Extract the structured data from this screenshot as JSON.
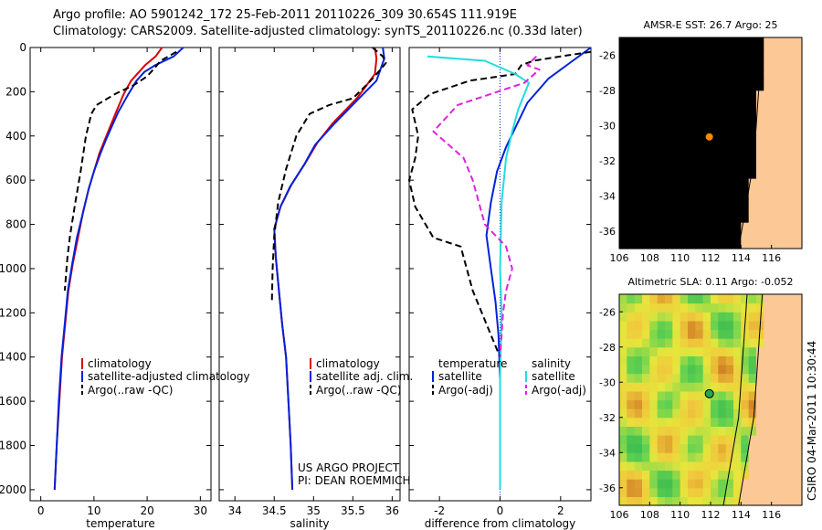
{
  "header": {
    "line1": "Argo profile: AO 5901242_172 25-Feb-2011 20110226_309 30.654S 111.919E",
    "line2": "Climatology: CARS2009. Satellite-adjusted climatology: synTS_20110226.nc (0.33d later)"
  },
  "colors": {
    "red": "#dd0000",
    "blue": "#0022dd",
    "black": "#000000",
    "cyan": "#22dddd",
    "magenta": "#dd22dd"
  },
  "chart_data": [
    {
      "type": "line",
      "xlabel": "temperature",
      "xlim": [
        -2,
        32
      ],
      "ylim": [
        2050,
        0
      ],
      "xticks": [
        0,
        10,
        20,
        30
      ],
      "yticks": [
        0,
        200,
        400,
        600,
        800,
        1000,
        1200,
        1400,
        1600,
        1800,
        2000
      ],
      "legend": {
        "position": "lower-right",
        "entries": [
          "climatology",
          "satellite-adjusted climatology",
          "Argo(..raw -QC)"
        ]
      },
      "series": [
        {
          "name": "climatology",
          "color": "red",
          "dash": false,
          "points": [
            [
              22.8,
              0
            ],
            [
              21.6,
              40
            ],
            [
              19.6,
              80
            ],
            [
              18.5,
              110
            ],
            [
              17.0,
              150
            ],
            [
              15.6,
              210
            ],
            [
              14.2,
              290
            ],
            [
              13.0,
              360
            ],
            [
              12.0,
              420
            ],
            [
              11.0,
              480
            ],
            [
              10.0,
              560
            ],
            [
              9.0,
              640
            ],
            [
              8.0,
              740
            ],
            [
              7.0,
              860
            ],
            [
              6.0,
              980
            ],
            [
              5.2,
              1100
            ],
            [
              4.6,
              1250
            ],
            [
              4.0,
              1400
            ],
            [
              3.5,
              1600
            ],
            [
              3.0,
              1800
            ],
            [
              2.6,
              2000
            ]
          ]
        },
        {
          "name": "satellite-adjusted climatology",
          "color": "blue",
          "dash": false,
          "points": [
            [
              26.8,
              0
            ],
            [
              25.0,
              40
            ],
            [
              21.5,
              80
            ],
            [
              19.5,
              110
            ],
            [
              18.0,
              150
            ],
            [
              16.5,
              210
            ],
            [
              14.6,
              290
            ],
            [
              13.3,
              360
            ],
            [
              12.2,
              420
            ],
            [
              11.2,
              480
            ],
            [
              10.0,
              560
            ],
            [
              9.0,
              640
            ],
            [
              7.8,
              760
            ],
            [
              6.8,
              860
            ],
            [
              5.9,
              980
            ],
            [
              5.1,
              1100
            ],
            [
              4.5,
              1250
            ],
            [
              3.9,
              1400
            ],
            [
              3.4,
              1600
            ],
            [
              3.0,
              1800
            ],
            [
              2.6,
              2000
            ]
          ]
        },
        {
          "name": "Argo(..raw -QC)",
          "color": "black",
          "dash": true,
          "points": [
            [
              25.5,
              20
            ],
            [
              24.0,
              40
            ],
            [
              22.5,
              60
            ],
            [
              21.5,
              90
            ],
            [
              20.0,
              130
            ],
            [
              17.5,
              170
            ],
            [
              14.0,
              210
            ],
            [
              10.5,
              260
            ],
            [
              9.5,
              300
            ],
            [
              8.5,
              400
            ],
            [
              7.5,
              560
            ],
            [
              6.5,
              700
            ],
            [
              5.5,
              850
            ],
            [
              5.0,
              950
            ],
            [
              4.5,
              1100
            ]
          ]
        }
      ]
    },
    {
      "type": "line",
      "xlabel": "salinity",
      "xlim": [
        33.8,
        36.1
      ],
      "ylim": [
        2050,
        0
      ],
      "xticks": [
        34,
        34.5,
        35,
        35.5,
        36
      ],
      "legend": {
        "position": "lower-right",
        "entries": [
          "climatology",
          "satellite adj. clim.",
          "Argo(..raw -QC)"
        ]
      },
      "annotation": [
        "US ARGO PROJECT",
        "PI: DEAN ROEMMICH"
      ],
      "series": [
        {
          "name": "climatology",
          "color": "red",
          "dash": false,
          "points": [
            [
              35.78,
              0
            ],
            [
              35.8,
              50
            ],
            [
              35.78,
              120
            ],
            [
              35.55,
              230
            ],
            [
              35.25,
              340
            ],
            [
              35.05,
              430
            ],
            [
              34.9,
              520
            ],
            [
              34.72,
              620
            ],
            [
              34.58,
              720
            ],
            [
              34.5,
              820
            ],
            [
              34.52,
              950
            ],
            [
              34.56,
              1100
            ],
            [
              34.6,
              1250
            ],
            [
              34.65,
              1400
            ],
            [
              34.68,
              1600
            ],
            [
              34.71,
              1800
            ],
            [
              34.73,
              2000
            ]
          ]
        },
        {
          "name": "satellite adj. clim.",
          "color": "blue",
          "dash": false,
          "points": [
            [
              35.88,
              0
            ],
            [
              35.9,
              50
            ],
            [
              35.85,
              100
            ],
            [
              35.8,
              150
            ],
            [
              35.55,
              240
            ],
            [
              35.25,
              350
            ],
            [
              35.02,
              440
            ],
            [
              34.88,
              530
            ],
            [
              34.7,
              630
            ],
            [
              34.58,
              720
            ],
            [
              34.5,
              820
            ],
            [
              34.52,
              950
            ],
            [
              34.56,
              1100
            ],
            [
              34.6,
              1250
            ],
            [
              34.65,
              1400
            ],
            [
              34.68,
              1600
            ],
            [
              34.71,
              1800
            ],
            [
              34.73,
              2000
            ]
          ]
        },
        {
          "name": "Argo(..raw -QC)",
          "color": "black",
          "dash": true,
          "points": [
            [
              35.75,
              0
            ],
            [
              35.88,
              40
            ],
            [
              35.92,
              70
            ],
            [
              35.85,
              100
            ],
            [
              35.7,
              160
            ],
            [
              35.5,
              230
            ],
            [
              35.2,
              260
            ],
            [
              34.95,
              300
            ],
            [
              34.78,
              400
            ],
            [
              34.65,
              550
            ],
            [
              34.55,
              700
            ],
            [
              34.5,
              850
            ],
            [
              34.48,
              1000
            ],
            [
              34.47,
              1150
            ]
          ]
        }
      ]
    },
    {
      "type": "line",
      "xlabel": "difference from climatology",
      "xlim": [
        -3,
        3
      ],
      "ylim": [
        2050,
        0
      ],
      "xticks": [
        -2,
        0,
        2
      ],
      "legend": {
        "position": "lower-center",
        "headers": [
          "temperature",
          "salinity"
        ],
        "entries": [
          "satellite",
          "Argo(-adj)",
          "satellite",
          "Argo(-adj)"
        ]
      },
      "series": [
        {
          "name": "satellite",
          "group": "temperature",
          "color": "blue",
          "dash": false,
          "points": [
            [
              3.0,
              0
            ],
            [
              2.4,
              60
            ],
            [
              1.6,
              140
            ],
            [
              0.9,
              250
            ],
            [
              0.55,
              350
            ],
            [
              0.2,
              450
            ],
            [
              -0.1,
              560
            ],
            [
              -0.3,
              700
            ],
            [
              -0.45,
              850
            ],
            [
              -0.3,
              1000
            ],
            [
              -0.15,
              1150
            ],
            [
              -0.05,
              1300
            ],
            [
              0,
              1500
            ],
            [
              0,
              2000
            ]
          ]
        },
        {
          "name": "Argo(-adj)",
          "group": "temperature",
          "color": "black",
          "dash": true,
          "points": [
            [
              3.0,
              20
            ],
            [
              2.0,
              40
            ],
            [
              1.1,
              60
            ],
            [
              0.7,
              80
            ],
            [
              0.5,
              120
            ],
            [
              -1.0,
              150
            ],
            [
              -2.3,
              210
            ],
            [
              -2.9,
              280
            ],
            [
              -2.7,
              400
            ],
            [
              -2.8,
              500
            ],
            [
              -3.0,
              600
            ],
            [
              -2.8,
              720
            ],
            [
              -2.2,
              860
            ],
            [
              -1.3,
              900
            ],
            [
              -0.9,
              1100
            ],
            [
              -0.3,
              1300
            ],
            [
              0,
              1400
            ]
          ]
        },
        {
          "name": "satellite",
          "group": "salinity",
          "color": "cyan",
          "dash": false,
          "points": [
            [
              -2.4,
              40
            ],
            [
              -0.5,
              60
            ],
            [
              0.5,
              120
            ],
            [
              0.95,
              160
            ],
            [
              0.6,
              280
            ],
            [
              0.4,
              380
            ],
            [
              0.2,
              500
            ],
            [
              0.05,
              700
            ],
            [
              0.0,
              1000
            ],
            [
              0.05,
              1200
            ],
            [
              0,
              1500
            ],
            [
              0,
              2000
            ]
          ]
        },
        {
          "name": "Argo(-adj)",
          "group": "salinity",
          "color": "magenta",
          "dash": true,
          "points": [
            [
              1.2,
              40
            ],
            [
              0.9,
              80
            ],
            [
              1.3,
              100
            ],
            [
              0.8,
              160
            ],
            [
              -1.4,
              260
            ],
            [
              -2.2,
              380
            ],
            [
              -1.2,
              500
            ],
            [
              -0.9,
              600
            ],
            [
              -0.5,
              800
            ],
            [
              0.2,
              900
            ],
            [
              0.4,
              1000
            ],
            [
              0.2,
              1100
            ],
            [
              0.1,
              1200
            ],
            [
              0,
              1400
            ]
          ]
        }
      ]
    },
    {
      "type": "heatmap",
      "title": "AMSR-E SST: 26.7 Argo: 25",
      "xlim": [
        106,
        118
      ],
      "ylim": [
        -37,
        -25
      ],
      "xticks": [
        106,
        108,
        110,
        112,
        114,
        116
      ],
      "yticks": [
        -26,
        -28,
        -30,
        -32,
        -34,
        -36
      ],
      "argo_position": [
        111.919,
        -30.654
      ]
    },
    {
      "type": "heatmap",
      "title": "Altimetric SLA: 0.11 Argo: -0.052",
      "xlim": [
        106,
        118
      ],
      "ylim": [
        -37,
        -25
      ],
      "xticks": [
        106,
        108,
        110,
        112,
        114,
        116
      ],
      "yticks": [
        -26,
        -28,
        -30,
        -32,
        -34,
        -36
      ],
      "argo_position": [
        111.919,
        -30.654
      ],
      "stamp": "CSIRO 04-Mar-2011 10:30:44"
    }
  ]
}
